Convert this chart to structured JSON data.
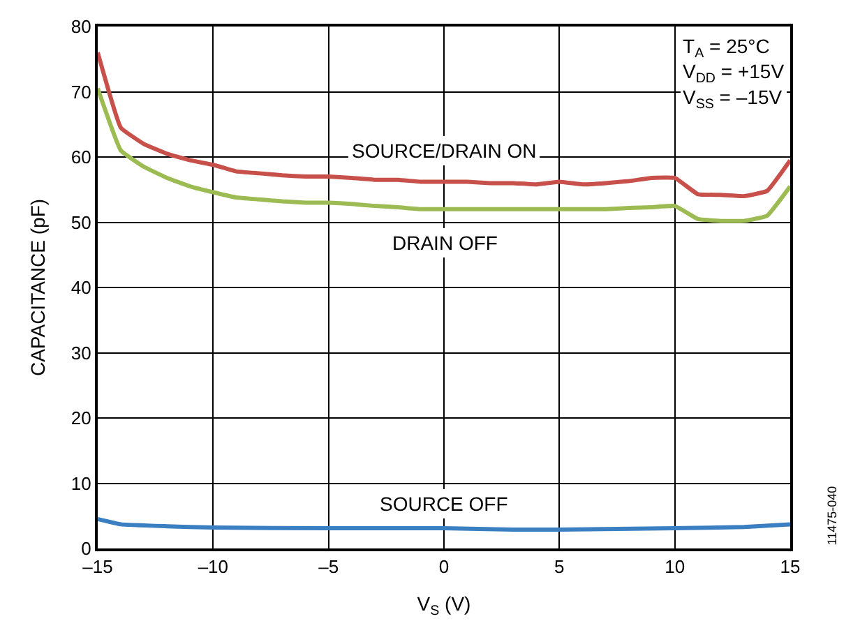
{
  "chart_data": {
    "type": "line",
    "xlabel": "V$_{S}$ (V)",
    "ylabel": "CAPACITANCE (pF)",
    "xlim": [
      -15,
      15
    ],
    "xticks": [
      {
        "value": -15,
        "label": "–15"
      },
      {
        "value": -10,
        "label": "–10"
      },
      {
        "value": -5,
        "label": "–5"
      },
      0,
      5,
      10,
      15
    ],
    "ylim": [
      0,
      80
    ],
    "yticks": [
      0,
      10,
      20,
      30,
      40,
      50,
      60,
      70,
      80
    ],
    "grid": true,
    "legend": false,
    "marker": "none",
    "line_style": "solid",
    "series": [
      {
        "name": "SOURCE/DRAIN ON",
        "color": "#c8504b",
        "x": [
          -15,
          -14,
          -13,
          -12,
          -11,
          -10,
          -9,
          -8,
          -7,
          -6,
          -5,
          -4,
          -3,
          -2,
          -1,
          0,
          1,
          2,
          3,
          4,
          5,
          6,
          7,
          8,
          9,
          10,
          11,
          12,
          13,
          14,
          15
        ],
        "values": [
          76,
          64.5,
          62,
          60.5,
          59.5,
          58.8,
          57.8,
          57.5,
          57.2,
          57,
          57,
          56.8,
          56.5,
          56.5,
          56.2,
          56.2,
          56.2,
          56,
          56,
          55.8,
          56.2,
          55.8,
          56,
          56.3,
          56.8,
          56.8,
          54.3,
          54.2,
          54,
          54.8,
          59.5
        ]
      },
      {
        "name": "DRAIN OFF",
        "color": "#9cbb52",
        "x": [
          -15,
          -14,
          -13,
          -12,
          -11,
          -10,
          -9,
          -8,
          -7,
          -6,
          -5,
          -4,
          -3,
          -2,
          -1,
          0,
          1,
          2,
          3,
          4,
          5,
          6,
          7,
          8,
          9,
          10,
          11,
          12,
          13,
          14,
          15
        ],
        "values": [
          70.5,
          61,
          58.5,
          56.8,
          55.5,
          54.6,
          53.8,
          53.5,
          53.2,
          53,
          53,
          52.8,
          52.5,
          52.3,
          52,
          52,
          52,
          52,
          52,
          52,
          52,
          52,
          52,
          52.2,
          52.3,
          52.5,
          50.5,
          50.2,
          50.2,
          51,
          55.5
        ]
      },
      {
        "name": "SOURCE OFF",
        "color": "#3a7fc1",
        "x": [
          -15,
          -14,
          -12,
          -10,
          -5,
          0,
          3,
          5,
          10,
          13,
          15
        ],
        "values": [
          4.5,
          3.7,
          3.4,
          3.2,
          3.1,
          3.1,
          2.9,
          2.9,
          3.1,
          3.3,
          3.7
        ]
      }
    ],
    "annotations": [
      "T$_{A}$ = 25°C\nV$_{DD}$ = +15V\nV$_{SS}$ = –15V",
      "11475-040"
    ]
  }
}
